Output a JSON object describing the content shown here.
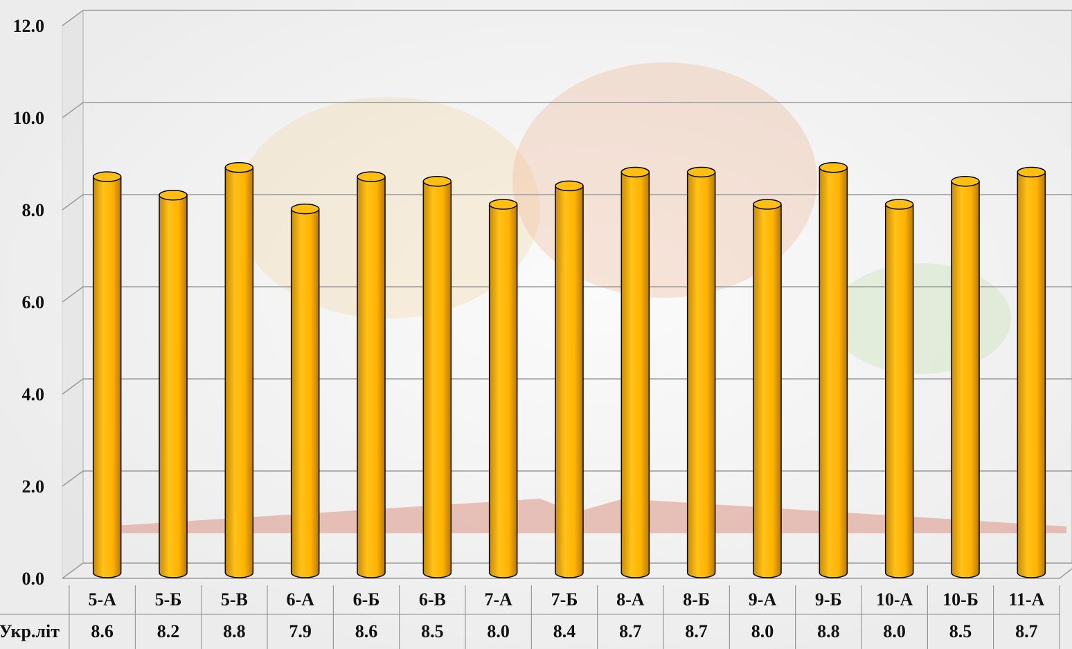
{
  "chart_data": {
    "type": "bar",
    "categories": [
      "5-А",
      "5-Б",
      "5-В",
      "6-А",
      "6-Б",
      "6-В",
      "7-А",
      "7-Б",
      "8-А",
      "8-Б",
      "9-А",
      "9-Б",
      "10-А",
      "10-Б",
      "11-А"
    ],
    "series": [
      {
        "name": "Укр.літ",
        "color": "#ffb300",
        "values": [
          8.6,
          8.2,
          8.8,
          7.9,
          8.6,
          8.5,
          8.0,
          8.4,
          8.7,
          8.7,
          8.0,
          8.8,
          8.0,
          8.5,
          8.7
        ],
        "value_labels": [
          "8.6",
          "8.2",
          "8.8",
          "7.9",
          "8.6",
          "8.5",
          "8.0",
          "8.4",
          "8.7",
          "8.7",
          "8.0",
          "8.8",
          "8.0",
          "8.5",
          "8.7"
        ]
      }
    ],
    "ylim": [
      0,
      12
    ],
    "yticks": [
      {
        "value": 0,
        "label": "0.0"
      },
      {
        "value": 2,
        "label": "2.0"
      },
      {
        "value": 4,
        "label": "4.0"
      },
      {
        "value": 6,
        "label": "6.0"
      },
      {
        "value": 8,
        "label": "8.0"
      },
      {
        "value": 10,
        "label": "10.0"
      },
      {
        "value": 12,
        "label": "12.0"
      }
    ],
    "grid": true
  }
}
